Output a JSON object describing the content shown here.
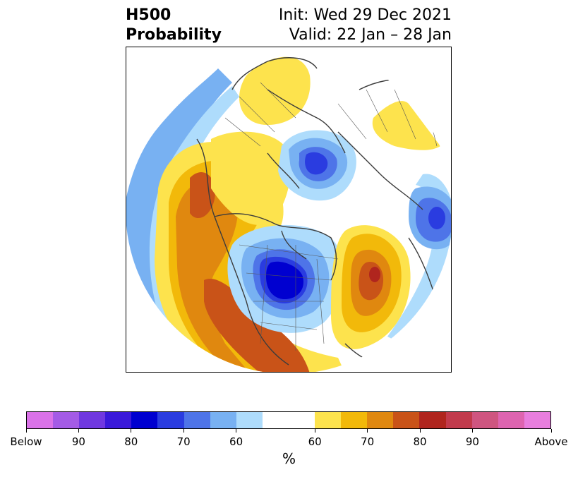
{
  "title": {
    "left_line1": "H500",
    "left_line2": "Probability",
    "right_line1": "Init: Wed 29 Dec 2021",
    "right_line2": "Valid: 22 Jan – 28 Jan"
  },
  "colorbar": {
    "colors": [
      "#da72e8",
      "#a45be6",
      "#7038e0",
      "#3a19da",
      "#0000d0",
      "#2a3ce0",
      "#4e74e8",
      "#78b1f2",
      "#aedcfc",
      "#ffffff",
      "#ffffff",
      "#fde34d",
      "#f2b90a",
      "#e0880f",
      "#c95318",
      "#b0251e",
      "#c23a4c",
      "#cf5580",
      "#de64b0",
      "#e87ede"
    ],
    "tick_labels": [
      "Below",
      "90",
      "80",
      "70",
      "60",
      "60",
      "70",
      "80",
      "90",
      "Above"
    ],
    "unit": "%"
  }
}
